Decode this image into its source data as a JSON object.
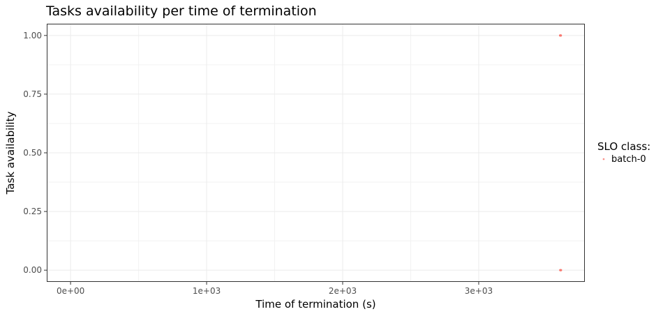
{
  "chart_data": {
    "type": "scatter",
    "title": "Tasks availability per time of termination",
    "xlabel": "Time of termination (s)",
    "ylabel": "Task availability",
    "xlim": [
      -175,
      3780
    ],
    "ylim": [
      -0.05,
      1.05
    ],
    "x_ticks": [
      {
        "value": 0,
        "label": "0e+00"
      },
      {
        "value": 1000,
        "label": "1e+03"
      },
      {
        "value": 2000,
        "label": "2e+03"
      },
      {
        "value": 3000,
        "label": "3e+03"
      }
    ],
    "y_ticks": [
      {
        "value": 0,
        "label": "0.00"
      },
      {
        "value": 0.25,
        "label": "0.25"
      },
      {
        "value": 0.5,
        "label": "0.50"
      },
      {
        "value": 0.75,
        "label": "0.75"
      },
      {
        "value": 1,
        "label": "1.00"
      }
    ],
    "grid": true,
    "legend": {
      "title": "SLO class:",
      "placement": "right"
    },
    "series": [
      {
        "name": "batch-0",
        "color": "#F8766D",
        "points": [
          {
            "x": 3598,
            "y": 1.0
          },
          {
            "x": 3601,
            "y": 1.0
          },
          {
            "x": 3604,
            "y": 1.0
          },
          {
            "x": 3599,
            "y": 0.0
          },
          {
            "x": 3602,
            "y": 0.0
          },
          {
            "x": 3605,
            "y": 0.0
          }
        ]
      }
    ]
  }
}
